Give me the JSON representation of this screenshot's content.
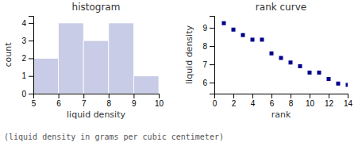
{
  "chart_data": [
    {
      "type": "histogram",
      "title": "histogram",
      "xlabel": "liquid density",
      "ylabel": "count",
      "bins": [
        5,
        6,
        7,
        8,
        9,
        10
      ],
      "values": [
        2,
        4,
        3,
        4,
        1
      ],
      "color": "#c8cce6",
      "xlim": [
        5,
        10
      ],
      "ylim": [
        0,
        4.4
      ],
      "xticks": [
        5,
        6,
        7,
        8,
        9,
        10
      ],
      "yticks": [
        0,
        1,
        2,
        3,
        4
      ],
      "grid": false
    },
    {
      "type": "scatter",
      "title": "rank curve",
      "xlabel": "rank",
      "ylabel": "liquid density",
      "x": [
        1,
        2,
        3,
        4,
        5,
        6,
        7,
        8,
        9,
        10,
        11,
        12,
        13,
        14
      ],
      "values": [
        9.25,
        8.9,
        8.6,
        8.35,
        8.35,
        7.6,
        7.35,
        7.1,
        6.9,
        6.55,
        6.55,
        6.2,
        5.95,
        5.88
      ],
      "color": "#00008b",
      "marker": "square",
      "xlim": [
        0,
        14
      ],
      "ylim": [
        5.4,
        9.65
      ],
      "xticks": [
        0,
        2,
        4,
        6,
        8,
        10,
        12,
        14
      ],
      "yticks": [
        6,
        7,
        8,
        9
      ],
      "grid": false
    }
  ],
  "caption": "(liquid density in grams per cubic centimeter)"
}
